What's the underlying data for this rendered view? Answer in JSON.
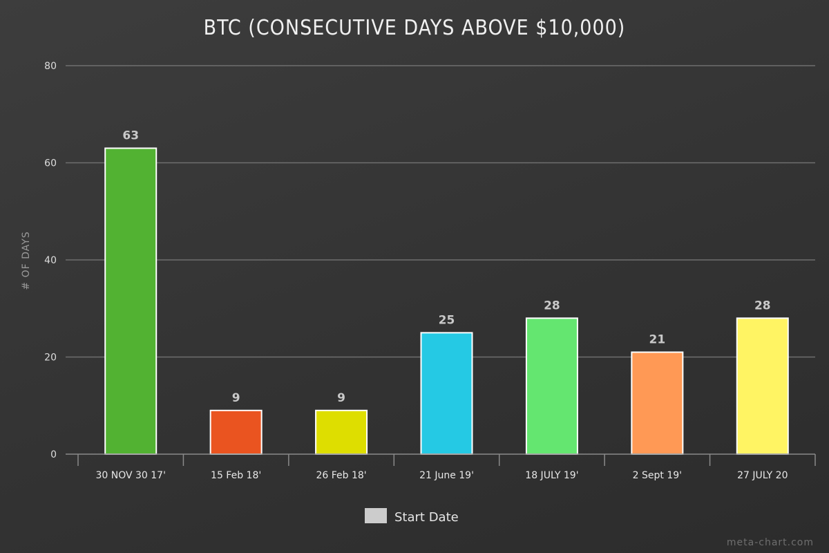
{
  "chart_data": {
    "type": "bar",
    "title": "BTC (CONSECUTIVE DAYS ABOVE $10,000)",
    "ylabel": "# OF DAYS",
    "xlabel": "",
    "categories": [
      "30 NOV 30 17'",
      "15 Feb 18'",
      "26 Feb 18'",
      "21 June 19'",
      "18 JULY 19'",
      "2 Sept 19'",
      "27 JULY 20"
    ],
    "values": [
      63,
      9,
      9,
      25,
      28,
      21,
      28
    ],
    "colors": [
      "#52b232",
      "#ea5420",
      "#dede00",
      "#25c9e4",
      "#64e670",
      "#ff9955",
      "#fff463"
    ],
    "ylim": [
      0,
      80
    ],
    "yticks": [
      0,
      20,
      40,
      60,
      80
    ],
    "grid": true,
    "legend": {
      "label": "Start Date",
      "color": "#cccccc",
      "placement": "bottom-center"
    }
  },
  "watermark": "meta-chart.com"
}
